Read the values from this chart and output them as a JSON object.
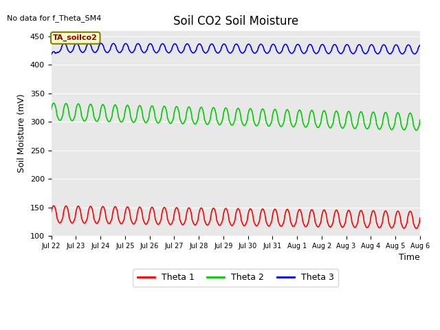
{
  "title": "Soil CO2 Soil Moisture",
  "no_data_text": "No data for f_Theta_SM4",
  "ylabel": "Soil Moisture (mV)",
  "xlabel": "Time",
  "ylim": [
    100,
    460
  ],
  "yticks": [
    100,
    150,
    200,
    250,
    300,
    350,
    400,
    450
  ],
  "xtick_labels": [
    "Jul 22",
    "Jul 23",
    "Jul 24",
    "Jul 25",
    "Jul 26",
    "Jul 27",
    "Jul 28",
    "Jul 29",
    "Jul 30",
    "Jul 31",
    "Aug 1",
    "Aug 2",
    "Aug 3",
    "Aug 4",
    "Aug 5",
    "Aug 6"
  ],
  "legend_label": "TA_soilco2",
  "legend_entries": [
    "Theta 1",
    "Theta 2",
    "Theta 3"
  ],
  "legend_colors": [
    "#ff0000",
    "#00cc00",
    "#0000ff"
  ],
  "plot_bg_color": "#e8e8e8",
  "fig_bg_color": "#ffffff",
  "title_fontsize": 12,
  "tick_fontsize": 8,
  "ylabel_fontsize": 9,
  "xlabel_fontsize": 9,
  "n_days": 15,
  "cycles_per_day": 2,
  "theta1_base": 133,
  "theta1_amp_up": 20,
  "theta1_amp_down": 10,
  "theta1_drift": -10,
  "theta2_base": 313,
  "theta2_amp_up": 20,
  "theta2_amp_down": 10,
  "theta2_drift": -18,
  "theta3_base": 428,
  "theta3_amp_up": 10,
  "theta3_amp_down": 6,
  "theta3_drift": -3,
  "linewidth": 1.2
}
